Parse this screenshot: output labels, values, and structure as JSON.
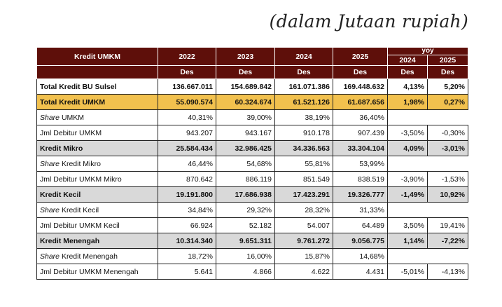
{
  "title": "(dalam Jutaan rupiah)",
  "header": {
    "label": "Kredit UMKM",
    "years": [
      "2022",
      "2023",
      "2024",
      "2025"
    ],
    "yoy_label": "yoy",
    "yoy_years": [
      "2024",
      "2025"
    ],
    "period": "Des"
  },
  "rows": [
    {
      "label": "Total Kredit BU Sulsel",
      "style": "bold",
      "values": [
        "136.667.011",
        "154.689.842",
        "161.071.386",
        "169.448.632"
      ],
      "yoy": [
        "4,13%",
        "5,20%"
      ]
    },
    {
      "label": "Total Kredit UMKM",
      "style": "highlight",
      "values": [
        "55.090.574",
        "60.324.674",
        "61.521.126",
        "61.687.656"
      ],
      "yoy": [
        "1,98%",
        "0,27%"
      ]
    },
    {
      "italic": "Share",
      "label": " UMKM",
      "style": "normal",
      "values": [
        "40,31%",
        "39,00%",
        "38,19%",
        "36,40%"
      ],
      "yoy": []
    },
    {
      "label": "Jml Debitur UMKM",
      "style": "normal",
      "values": [
        "943.207",
        "943.167",
        "910.178",
        "907.439"
      ],
      "yoy": [
        "-3,50%",
        "-0,30%"
      ]
    },
    {
      "label": "Kredit Mikro",
      "style": "grey",
      "values": [
        "25.584.434",
        "32.986.425",
        "34.336.563",
        "33.304.104"
      ],
      "yoy": [
        "4,09%",
        "-3,01%"
      ]
    },
    {
      "italic": "Share",
      "label": " Kredit Mikro",
      "style": "normal",
      "values": [
        "46,44%",
        "54,68%",
        "55,81%",
        "53,99%"
      ],
      "yoy": []
    },
    {
      "label": "Jml Debitur UMKM Mikro",
      "style": "normal",
      "values": [
        "870.642",
        "886.119",
        "851.549",
        "838.519"
      ],
      "yoy": [
        "-3,90%",
        "-1,53%"
      ]
    },
    {
      "label": "Kredit Kecil",
      "style": "grey",
      "values": [
        "19.191.800",
        "17.686.938",
        "17.423.291",
        "19.326.777"
      ],
      "yoy": [
        "-1,49%",
        "10,92%"
      ]
    },
    {
      "italic": "Share",
      "label": " Kredit Kecil",
      "style": "normal",
      "values": [
        "34,84%",
        "29,32%",
        "28,32%",
        "31,33%"
      ],
      "yoy": []
    },
    {
      "label": "Jml Debitur UMKM Kecil",
      "style": "normal",
      "values": [
        "66.924",
        "52.182",
        "54.007",
        "64.489"
      ],
      "yoy": [
        "3,50%",
        "19,41%"
      ]
    },
    {
      "label": "Kredit Menengah",
      "style": "grey",
      "values": [
        "10.314.340",
        "9.651.311",
        "9.761.272",
        "9.056.775"
      ],
      "yoy": [
        "1,14%",
        "-7,22%"
      ]
    },
    {
      "italic": "Share",
      "label": " Kredit Menengah",
      "style": "normal",
      "values": [
        "18,72%",
        "16,00%",
        "15,87%",
        "14,68%"
      ],
      "yoy": []
    },
    {
      "label": "Jml Debitur UMKM Menengah",
      "style": "normal",
      "values": [
        "5.641",
        "4.866",
        "4.622",
        "4.431"
      ],
      "yoy": [
        "-5,01%",
        "-4,13%"
      ]
    }
  ],
  "colors": {
    "header": "#5e0f0a",
    "highlight": "#f2c14e",
    "grey": "#d9d9d9"
  }
}
